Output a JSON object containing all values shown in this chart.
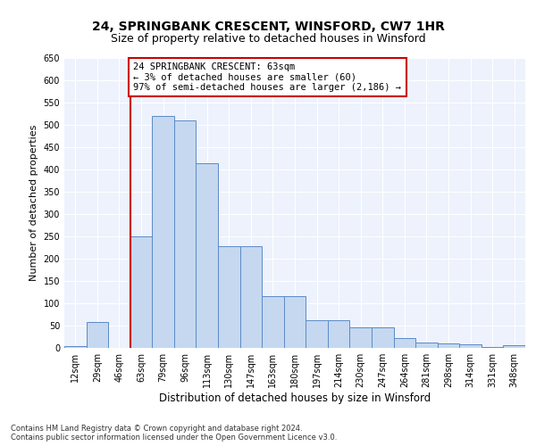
{
  "title1": "24, SPRINGBANK CRESCENT, WINSFORD, CW7 1HR",
  "title2": "Size of property relative to detached houses in Winsford",
  "xlabel": "Distribution of detached houses by size in Winsford",
  "ylabel": "Number of detached properties",
  "footnote1": "Contains HM Land Registry data © Crown copyright and database right 2024.",
  "footnote2": "Contains public sector information licensed under the Open Government Licence v3.0.",
  "annotation_line1": "24 SPRINGBANK CRESCENT: 63sqm",
  "annotation_line2": "← 3% of detached houses are smaller (60)",
  "annotation_line3": "97% of semi-detached houses are larger (2,186) →",
  "bar_categories": [
    "12sqm",
    "29sqm",
    "46sqm",
    "63sqm",
    "79sqm",
    "96sqm",
    "113sqm",
    "130sqm",
    "147sqm",
    "163sqm",
    "180sqm",
    "197sqm",
    "214sqm",
    "230sqm",
    "247sqm",
    "264sqm",
    "281sqm",
    "298sqm",
    "314sqm",
    "331sqm",
    "348sqm"
  ],
  "bar_values": [
    5,
    58,
    0,
    250,
    520,
    510,
    415,
    228,
    228,
    117,
    117,
    62,
    62,
    46,
    46,
    22,
    12,
    10,
    8,
    2,
    7
  ],
  "bar_color": "#c5d8f0",
  "bar_edge_color": "#5b8bc7",
  "vline_color": "#cc0000",
  "annotation_box_color": "#cc0000",
  "ylim": [
    0,
    650
  ],
  "yticks": [
    0,
    50,
    100,
    150,
    200,
    250,
    300,
    350,
    400,
    450,
    500,
    550,
    600,
    650
  ],
  "bg_color": "#eef2fc",
  "grid_color": "#ffffff",
  "title1_fontsize": 10,
  "title2_fontsize": 9,
  "annotation_fontsize": 7.5,
  "tick_fontsize": 7,
  "ylabel_fontsize": 8,
  "xlabel_fontsize": 8.5
}
